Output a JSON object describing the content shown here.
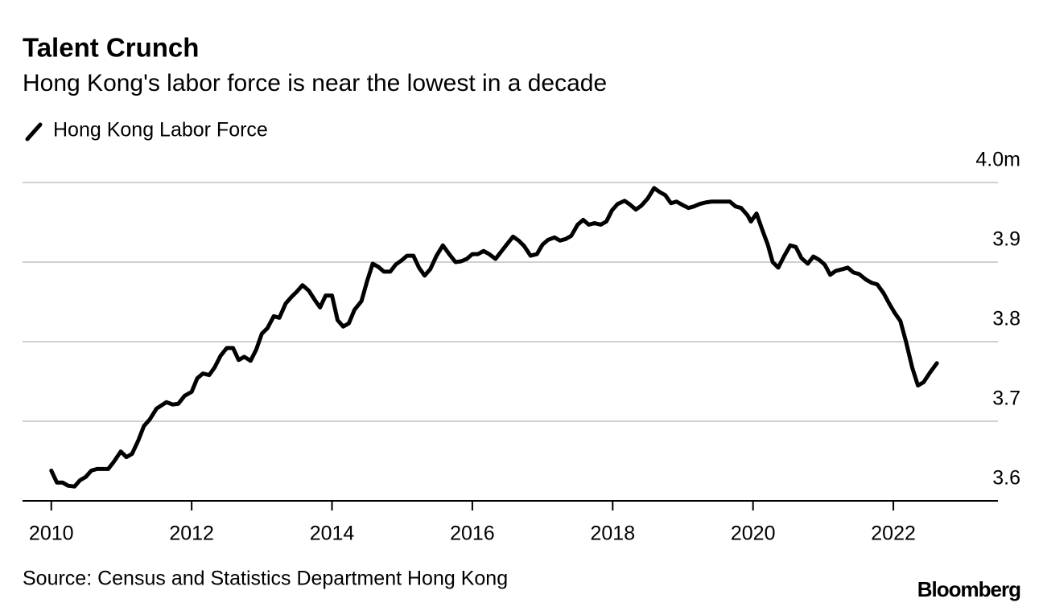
{
  "chart_data": {
    "type": "line",
    "title": "Talent Crunch",
    "subtitle": "Hong Kong's labor force is near the lowest in a decade",
    "source": "Source: Census and Statistics Department Hong Kong",
    "brand": "Bloomberg",
    "xlim": [
      2009.59,
      2023.49
    ],
    "xticks": [
      2010,
      2012,
      2014,
      2016,
      2018,
      2020,
      2022
    ],
    "ylim": [
      3.6,
      4.0
    ],
    "yticks": [
      {
        "value": 4.0,
        "label": "4.0m"
      },
      3.9,
      3.8,
      3.7,
      3.6
    ],
    "grid": true,
    "legend": "top-left",
    "x": [
      2010.0,
      2010.08,
      2010.16,
      2010.24,
      2010.33,
      2010.41,
      2010.49,
      2010.57,
      2010.65,
      2010.81,
      2010.89,
      2010.99,
      2011.07,
      2011.15,
      2011.24,
      2011.32,
      2011.4,
      2011.5,
      2011.64,
      2011.73,
      2011.81,
      2011.9,
      2012.0,
      2012.08,
      2012.16,
      2012.25,
      2012.33,
      2012.41,
      2012.5,
      2012.59,
      2012.67,
      2012.75,
      2012.84,
      2012.92,
      2013.0,
      2013.08,
      2013.17,
      2013.25,
      2013.34,
      2013.42,
      2013.5,
      2013.58,
      2013.67,
      2013.75,
      2013.83,
      2013.91,
      2014.0,
      2014.08,
      2014.16,
      2014.24,
      2014.32,
      2014.42,
      2014.5,
      2014.58,
      2014.66,
      2014.74,
      2014.83,
      2014.91,
      2014.99,
      2015.07,
      2015.16,
      2015.24,
      2015.32,
      2015.4,
      2015.49,
      2015.58,
      2015.67,
      2015.76,
      2015.84,
      2015.92,
      2016.0,
      2016.08,
      2016.16,
      2016.24,
      2016.33,
      2016.41,
      2016.49,
      2016.58,
      2016.66,
      2016.74,
      2016.83,
      2016.92,
      2017.0,
      2017.08,
      2017.17,
      2017.25,
      2017.33,
      2017.41,
      2017.5,
      2017.58,
      2017.66,
      2017.74,
      2017.83,
      2017.91,
      2017.99,
      2018.07,
      2018.17,
      2018.25,
      2018.33,
      2018.41,
      2018.5,
      2018.59,
      2018.67,
      2018.75,
      2018.83,
      2018.91,
      2018.99,
      2019.08,
      2019.16,
      2019.24,
      2019.33,
      2019.41,
      2019.59,
      2019.67,
      2019.75,
      2019.83,
      2019.92,
      2019.97,
      2020.05,
      2020.13,
      2020.21,
      2020.28,
      2020.36,
      2020.44,
      2020.53,
      2020.61,
      2020.69,
      2020.78,
      2020.86,
      2020.94,
      2021.02,
      2021.1,
      2021.18,
      2021.27,
      2021.35,
      2021.43,
      2021.51,
      2021.61,
      2021.69,
      2021.77,
      2021.86,
      2021.94,
      2022.02,
      2022.1,
      2022.18,
      2022.27,
      2022.35,
      2022.43,
      2022.52,
      2022.62
    ],
    "series": [
      {
        "name": "Hong Kong Labor Force",
        "color": "#000000",
        "values": [
          3.638,
          3.623,
          3.623,
          3.619,
          3.618,
          3.626,
          3.63,
          3.638,
          3.64,
          3.64,
          3.649,
          3.662,
          3.655,
          3.659,
          3.676,
          3.694,
          3.702,
          3.716,
          3.724,
          3.721,
          3.722,
          3.732,
          3.737,
          3.754,
          3.76,
          3.758,
          3.768,
          3.782,
          3.792,
          3.792,
          3.777,
          3.781,
          3.776,
          3.79,
          3.81,
          3.817,
          3.832,
          3.83,
          3.848,
          3.856,
          3.863,
          3.871,
          3.864,
          3.853,
          3.843,
          3.858,
          3.858,
          3.827,
          3.819,
          3.823,
          3.84,
          3.851,
          3.876,
          3.898,
          3.894,
          3.888,
          3.888,
          3.897,
          3.902,
          3.908,
          3.908,
          3.893,
          3.883,
          3.891,
          3.908,
          3.921,
          3.91,
          3.9,
          3.901,
          3.904,
          3.91,
          3.91,
          3.914,
          3.91,
          3.904,
          3.913,
          3.922,
          3.932,
          3.927,
          3.92,
          3.908,
          3.91,
          3.922,
          3.928,
          3.931,
          3.927,
          3.929,
          3.933,
          3.947,
          3.953,
          3.947,
          3.949,
          3.947,
          3.951,
          3.965,
          3.973,
          3.977,
          3.972,
          3.966,
          3.971,
          3.98,
          3.993,
          3.988,
          3.984,
          3.974,
          3.976,
          3.972,
          3.968,
          3.97,
          3.973,
          3.975,
          3.976,
          3.976,
          3.976,
          3.97,
          3.968,
          3.959,
          3.951,
          3.961,
          3.941,
          3.922,
          3.9,
          3.893,
          3.907,
          3.921,
          3.919,
          3.905,
          3.898,
          3.907,
          3.903,
          3.897,
          3.884,
          3.889,
          3.891,
          3.893,
          3.887,
          3.885,
          3.878,
          3.874,
          3.872,
          3.861,
          3.848,
          3.836,
          3.826,
          3.8,
          3.767,
          3.745,
          3.749,
          3.761,
          3.773
        ]
      }
    ]
  }
}
